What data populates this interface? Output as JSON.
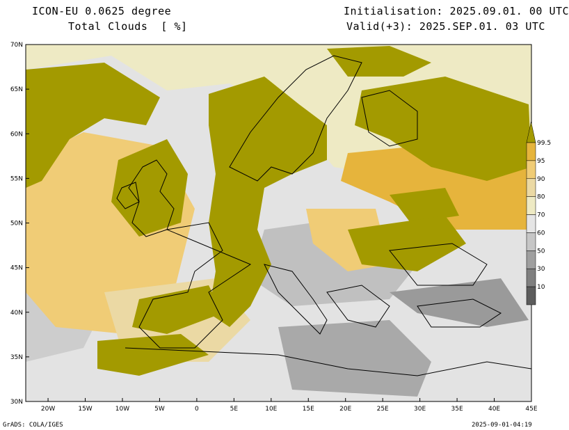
{
  "header": {
    "model": "ICON-EU 0.0625 degree",
    "variable": "Total Clouds  [ %]",
    "initialisation": "Initialisation: 2025.09.01. 00 UTC",
    "valid": "Valid(+3): 2025.SEP.01. 03 UTC"
  },
  "map": {
    "lat_labels": [
      "70N",
      "65N",
      "60N",
      "55N",
      "50N",
      "45N",
      "40N",
      "35N",
      "30N"
    ],
    "lon_labels": [
      "20W",
      "15W",
      "10W",
      "5W",
      "0",
      "5E",
      "10E",
      "15E",
      "20E",
      "25E",
      "30E",
      "35E",
      "40E",
      "45E"
    ],
    "extent": {
      "lon": [
        -23,
        45
      ],
      "lat": [
        30,
        70
      ]
    }
  },
  "colorbar": {
    "labels": [
      "99.5",
      "95",
      "90",
      "80",
      "70",
      "60",
      "50",
      "30",
      "10"
    ],
    "colors": [
      "#a39a00",
      "#e6b43c",
      "#f0cc76",
      "#ebd9a4",
      "#eeeac4",
      "#e5e5e5",
      "#c6c6c6",
      "#9f9f9f",
      "#7f7f7f",
      "#5c5c5c"
    ]
  },
  "footer": {
    "credit": "GrADS: COLA/IGES",
    "timestamp": "2025-09-01-04:19"
  }
}
